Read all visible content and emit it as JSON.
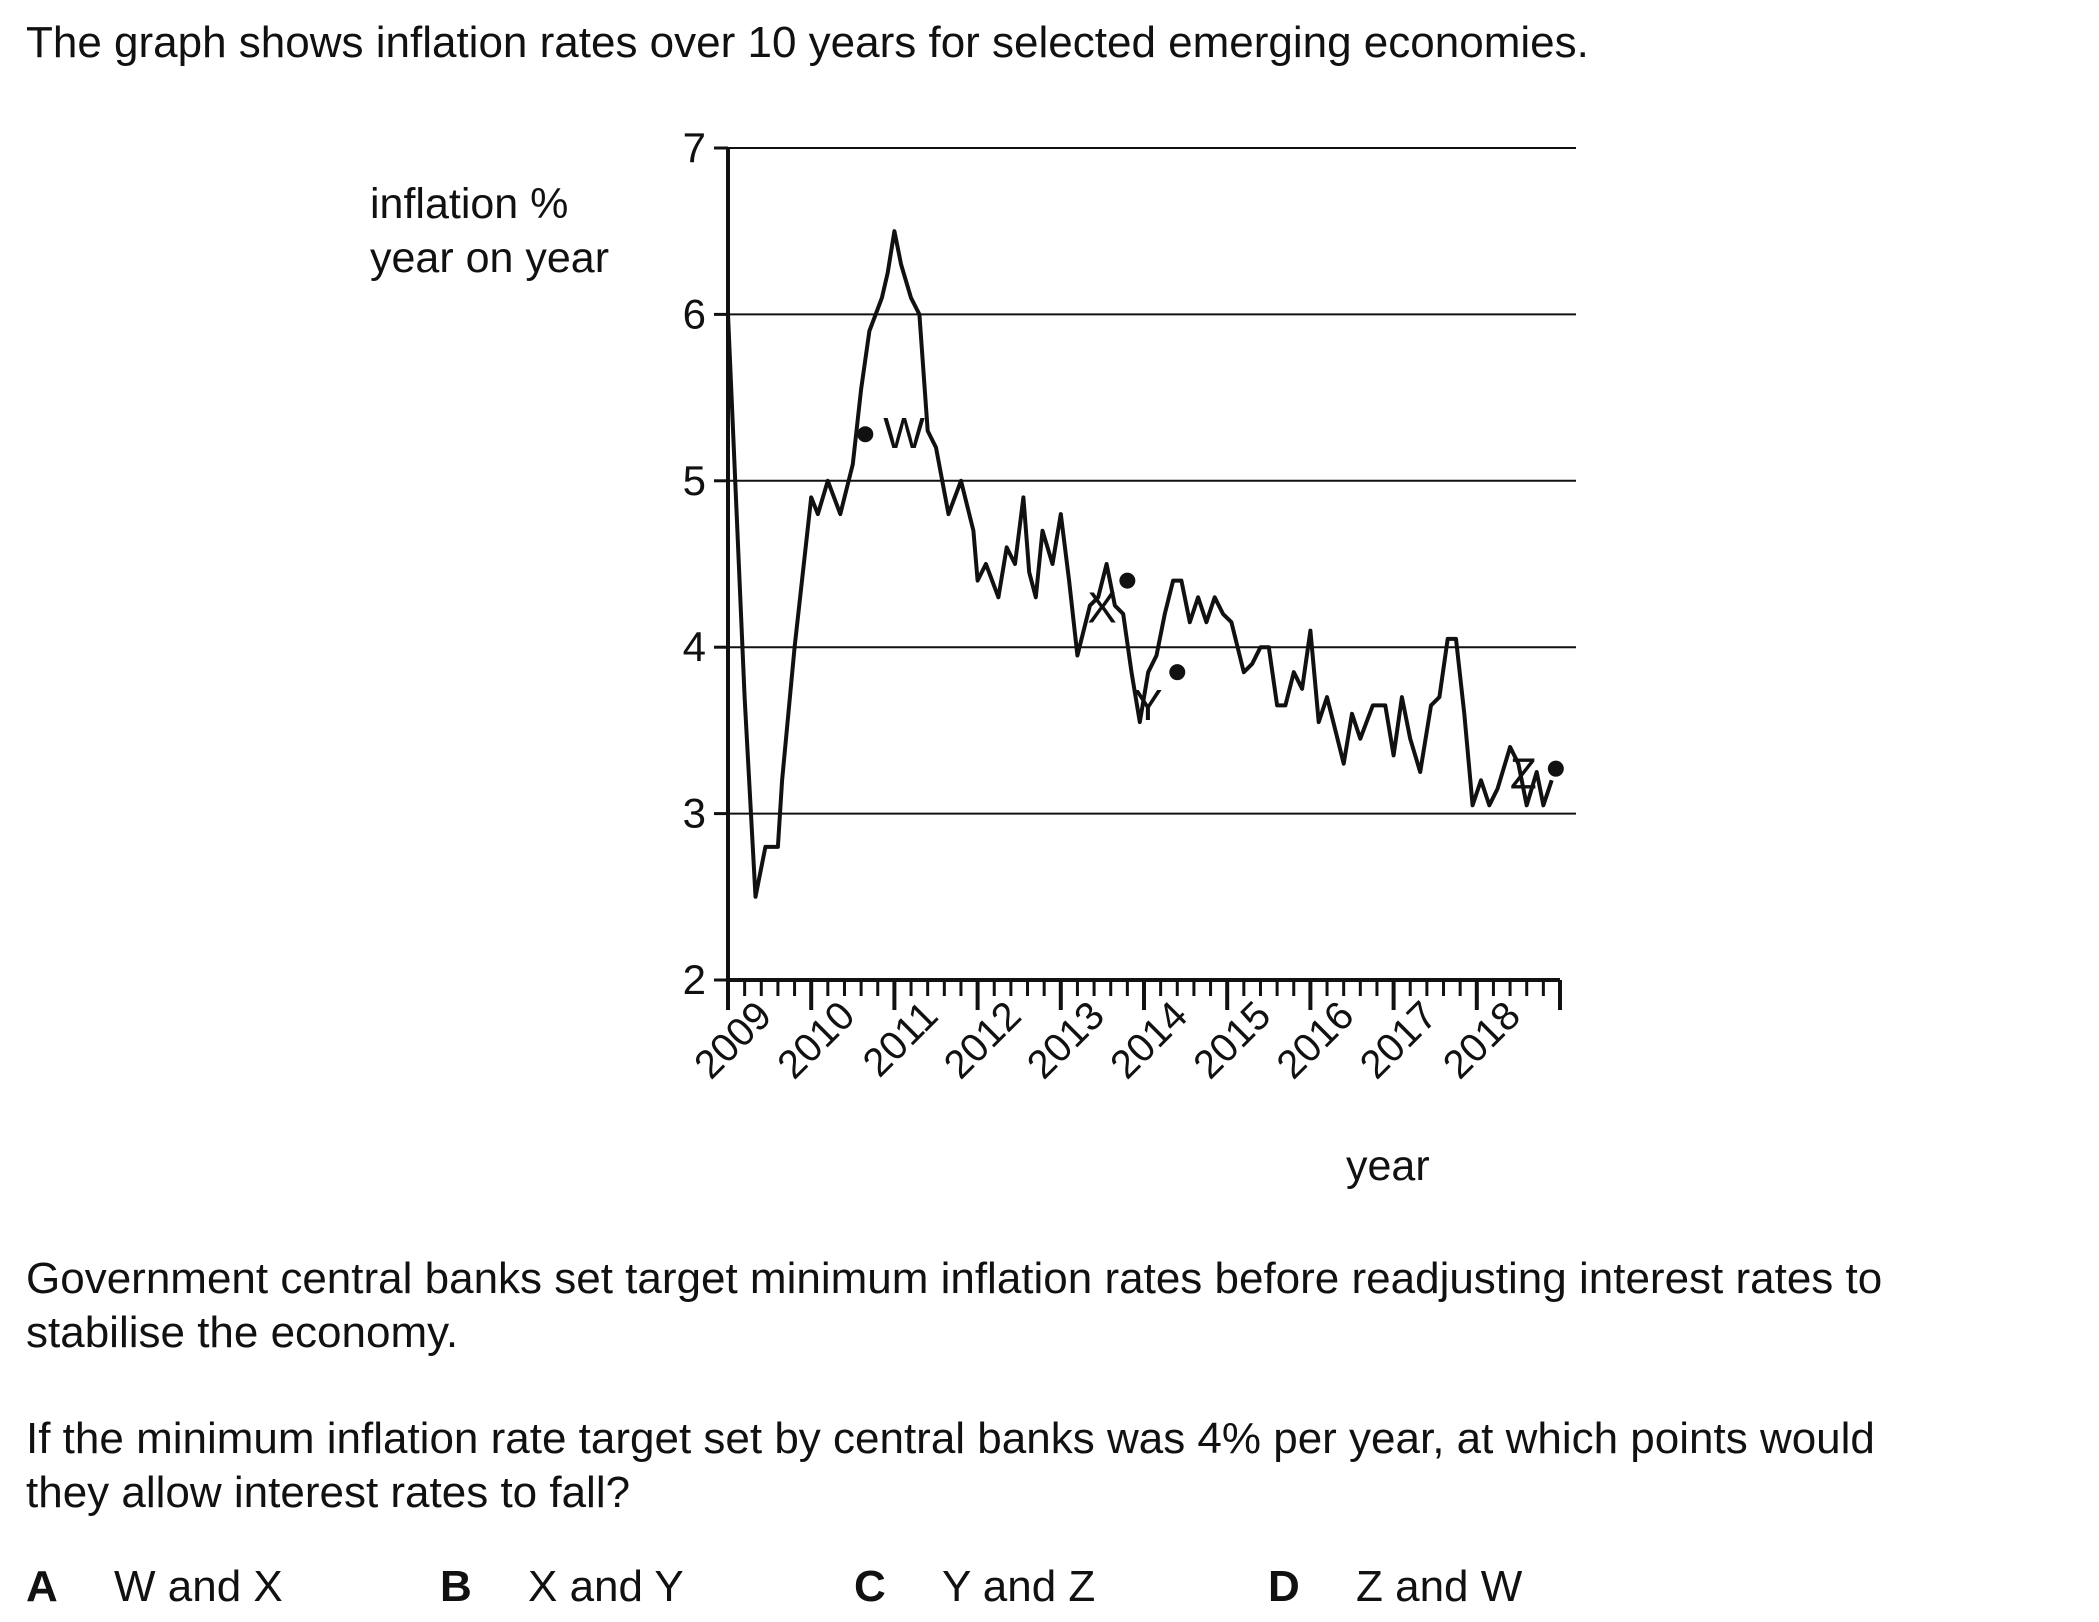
{
  "question": {
    "intro": "The graph shows inflation rates over 10 years for selected emerging economies.",
    "paragraph1_lines": [
      "Government central banks set target minimum inflation rates before readjusting interest rates to",
      "stabilise the economy."
    ],
    "paragraph2_lines": [
      "If the minimum inflation rate target set by central banks was 4% per year, at which points would",
      "they allow interest rates to fall?"
    ],
    "options": [
      {
        "letter": "A",
        "text": "W and X"
      },
      {
        "letter": "B",
        "text": "X and Y"
      },
      {
        "letter": "C",
        "text": "Y and Z"
      },
      {
        "letter": "D",
        "text": "Z and W"
      }
    ]
  },
  "chart_data": {
    "type": "line",
    "ylabel_lines": [
      "inflation %",
      "year on year"
    ],
    "xlabel": "year",
    "ylim": [
      2,
      7
    ],
    "xlim": [
      2009,
      2019
    ],
    "y_ticks": [
      "2",
      "3",
      "4",
      "5",
      "6",
      "7"
    ],
    "x_tick_labels": [
      "2009",
      "2010",
      "2011",
      "2012",
      "2013",
      "2014",
      "2015",
      "2016",
      "2017",
      "2018"
    ],
    "grid": "horizontal",
    "series": [
      {
        "x": [
          2009.0,
          2009.2,
          2009.33,
          2009.45,
          2009.6,
          2009.65,
          2009.8,
          2010.0,
          2010.08,
          2010.2,
          2010.35,
          2010.5,
          2010.6,
          2010.7,
          2010.85,
          2010.92,
          2011.0,
          2011.08,
          2011.2,
          2011.3,
          2011.4,
          2011.5,
          2011.65,
          2011.8,
          2011.95,
          2012.0,
          2012.1,
          2012.25,
          2012.35,
          2012.45,
          2012.55,
          2012.62,
          2012.7,
          2012.78,
          2012.9,
          2013.0,
          2013.1,
          2013.2,
          2013.35,
          2013.45,
          2013.55,
          2013.65,
          2013.75,
          2013.85,
          2013.95,
          2014.05,
          2014.15,
          2014.25,
          2014.35,
          2014.45,
          2014.55,
          2014.65,
          2014.75,
          2014.85,
          2014.95,
          2015.05,
          2015.2,
          2015.3,
          2015.4,
          2015.5,
          2015.6,
          2015.7,
          2015.8,
          2015.9,
          2016.0,
          2016.1,
          2016.2,
          2016.3,
          2016.4,
          2016.5,
          2016.6,
          2016.75,
          2016.9,
          2017.0,
          2017.1,
          2017.2,
          2017.32,
          2017.45,
          2017.55,
          2017.65,
          2017.75,
          2017.85,
          2017.95,
          2018.05,
          2018.15,
          2018.25,
          2018.4,
          2018.5,
          2018.6,
          2018.72,
          2018.8,
          2018.9
        ],
        "y": [
          6.0,
          3.7,
          2.5,
          2.8,
          2.8,
          3.2,
          4.0,
          4.9,
          4.8,
          5.0,
          4.8,
          5.1,
          5.55,
          5.9,
          6.1,
          6.25,
          6.5,
          6.3,
          6.1,
          6.0,
          5.3,
          5.2,
          4.8,
          5.0,
          4.7,
          4.4,
          4.5,
          4.3,
          4.6,
          4.5,
          4.9,
          4.45,
          4.3,
          4.7,
          4.5,
          4.8,
          4.4,
          3.95,
          4.25,
          4.3,
          4.5,
          4.25,
          4.2,
          3.85,
          3.55,
          3.85,
          3.95,
          4.2,
          4.4,
          4.4,
          4.15,
          4.3,
          4.15,
          4.3,
          4.2,
          4.15,
          3.85,
          3.9,
          4.0,
          4.0,
          3.65,
          3.65,
          3.85,
          3.75,
          4.1,
          3.55,
          3.7,
          3.5,
          3.3,
          3.6,
          3.45,
          3.65,
          3.65,
          3.35,
          3.7,
          3.45,
          3.25,
          3.65,
          3.7,
          4.05,
          4.05,
          3.6,
          3.05,
          3.2,
          3.05,
          3.15,
          3.4,
          3.3,
          3.05,
          3.25,
          3.05,
          3.2
        ]
      }
    ],
    "points": [
      {
        "label": "W",
        "x": 2010.65,
        "y": 5.28
      },
      {
        "label": "X",
        "x": 2013.8,
        "y": 4.4
      },
      {
        "label": "Y",
        "x": 2014.4,
        "y": 3.85
      },
      {
        "label": "Z",
        "x": 2018.95,
        "y": 3.27
      }
    ]
  }
}
